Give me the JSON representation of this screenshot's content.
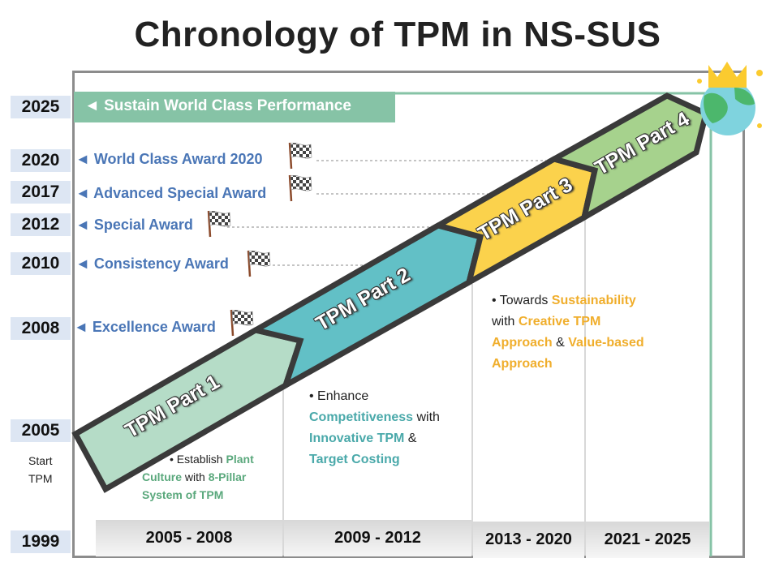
{
  "title": "Chronology of TPM in NS-SUS",
  "years": {
    "y2025": "2025",
    "y2020": "2020",
    "y2017": "2017",
    "y2012": "2012",
    "y2010": "2010",
    "y2008": "2008",
    "y2005": "2005",
    "y1999": "1999"
  },
  "start_label": {
    "line1": "Start",
    "line2": "TPM"
  },
  "sustain": "◄ Sustain World Class Performance",
  "awards": {
    "a2020": "◄ World Class Award 2020",
    "a2017": "◄ Advanced Special Award",
    "a2012": "◄ Special Award",
    "a2010": "◄ Consistency Award",
    "a2008": "◄ Excellence Award"
  },
  "parts": {
    "p1": "TPM Part 1",
    "p2": "TPM Part 2",
    "p3": "TPM Part 3",
    "p4": "TPM Part 4"
  },
  "desc1": {
    "bullet": "• Establish ",
    "w1": "Plant",
    "w2": "Culture",
    "w3": " with ",
    "w4": "8-Pillar",
    "w5": "System of TPM"
  },
  "desc2": {
    "bullet": "• Enhance",
    "w1": "Competitiveness",
    "w2": " with",
    "w3": "Innovative TPM",
    "w4": " &",
    "w5": "Target Costing"
  },
  "desc3": {
    "bullet": "• Towards ",
    "w1": "Sustainability",
    "w2": "with ",
    "w3": "Creative TPM",
    "w4": "Approach",
    "w5": " & ",
    "w6": "Value-based",
    "w7": "Approach"
  },
  "periods": {
    "p1": "2005 - 2008",
    "p2": "2009 - 2012",
    "p3": "2013 - 2020",
    "p4": "2021 - 2025"
  },
  "colors": {
    "part1": "#b5dcc7",
    "part2": "#62c0c6",
    "part3": "#fbd24c",
    "part4": "#a6d28d",
    "award_text": "#4a76b6",
    "year_bg": "#dde6f3"
  }
}
